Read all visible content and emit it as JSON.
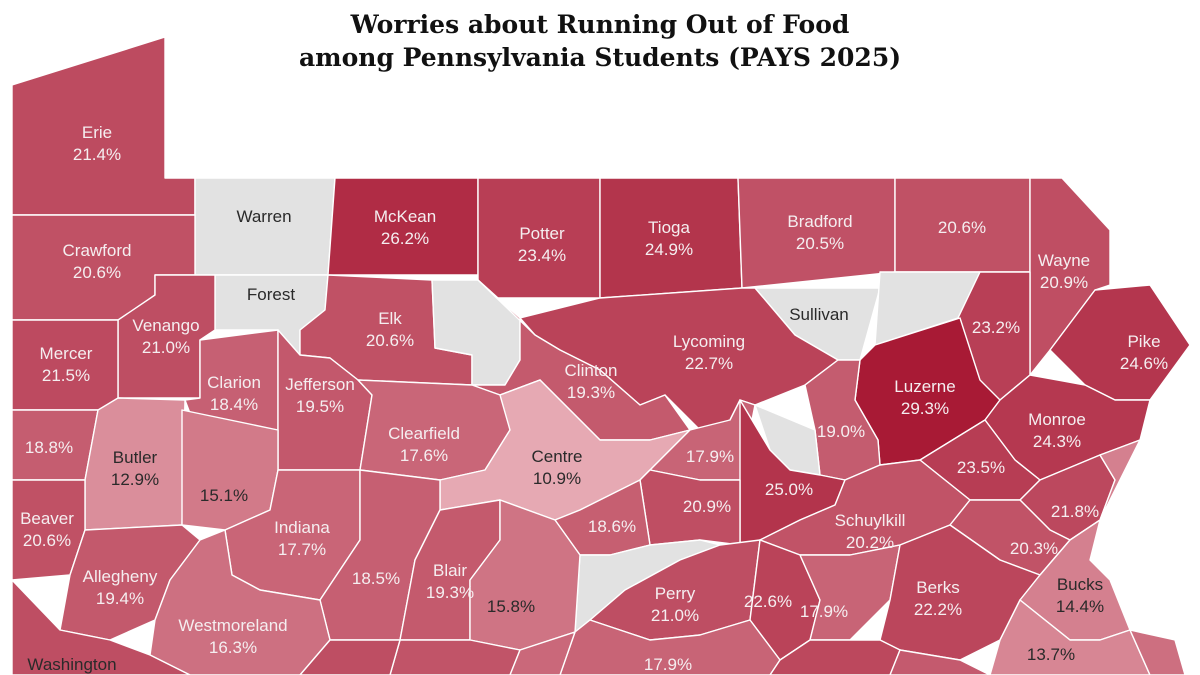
{
  "title": {
    "line1": "Worries about Running Out of Food",
    "line2": "among Pennsylvania Students (PAYS 2025)"
  },
  "colors": {
    "no_data": "#e2e2e2",
    "border": "#ffffff",
    "scale_low": "#e6a9b3",
    "scale_high": "#a81a35"
  },
  "counties": [
    {
      "key": "erie",
      "name": "Erie",
      "value": "21.4%"
    },
    {
      "key": "warren",
      "name": "Warren",
      "value": ""
    },
    {
      "key": "mckean",
      "name": "McKean",
      "value": "26.2%"
    },
    {
      "key": "potter",
      "name": "Potter",
      "value": "23.4%"
    },
    {
      "key": "tioga",
      "name": "Tioga",
      "value": "24.9%"
    },
    {
      "key": "bradford",
      "name": "Bradford",
      "value": "20.5%"
    },
    {
      "key": "susquehanna",
      "name": "",
      "value": "20.6%"
    },
    {
      "key": "wayne",
      "name": "Wayne",
      "value": "20.9%"
    },
    {
      "key": "crawford",
      "name": "Crawford",
      "value": "20.6%"
    },
    {
      "key": "forest",
      "name": "Forest",
      "value": ""
    },
    {
      "key": "elk",
      "name": "Elk",
      "value": "20.6%"
    },
    {
      "key": "cameron",
      "name": "",
      "value": ""
    },
    {
      "key": "sullivan",
      "name": "Sullivan",
      "value": ""
    },
    {
      "key": "wyoming",
      "name": "",
      "value": ""
    },
    {
      "key": "lackawanna",
      "name": "",
      "value": "23.2%"
    },
    {
      "key": "pike",
      "name": "Pike",
      "value": "24.6%"
    },
    {
      "key": "venango",
      "name": "Venango",
      "value": "21.0%"
    },
    {
      "key": "mercer",
      "name": "Mercer",
      "value": "21.5%"
    },
    {
      "key": "lycoming",
      "name": "Lycoming",
      "value": "22.7%"
    },
    {
      "key": "clinton",
      "name": "Clinton",
      "value": "19.3%"
    },
    {
      "key": "luzerne",
      "name": "Luzerne",
      "value": "29.3%"
    },
    {
      "key": "clarion",
      "name": "Clarion",
      "value": "18.4%"
    },
    {
      "key": "jefferson",
      "name": "Jefferson",
      "value": "19.5%"
    },
    {
      "key": "clearfield",
      "name": "Clearfield",
      "value": "17.6%"
    },
    {
      "key": "centre",
      "name": "Centre",
      "value": "10.9%"
    },
    {
      "key": "columbia",
      "name": "",
      "value": "19.0%"
    },
    {
      "key": "monroe",
      "name": "Monroe",
      "value": "24.3%"
    },
    {
      "key": "lawrence",
      "name": "",
      "value": "18.8%"
    },
    {
      "key": "butler",
      "name": "Butler",
      "value": "12.9%"
    },
    {
      "key": "armstrong",
      "name": "",
      "value": "15.1%"
    },
    {
      "key": "union",
      "name": "",
      "value": "17.9%"
    },
    {
      "key": "montour",
      "name": "",
      "value": ""
    },
    {
      "key": "northumberland",
      "name": "",
      "value": "25.0%"
    },
    {
      "key": "carbon",
      "name": "",
      "value": "23.5%"
    },
    {
      "key": "beaver",
      "name": "Beaver",
      "value": "20.6%"
    },
    {
      "key": "indiana",
      "name": "Indiana",
      "value": "17.7%"
    },
    {
      "key": "snyder",
      "name": "",
      "value": "20.9%"
    },
    {
      "key": "mifflin",
      "name": "",
      "value": "18.6%"
    },
    {
      "key": "juniata",
      "name": "",
      "value": ""
    },
    {
      "key": "schuylkill",
      "name": "Schuylkill",
      "value": "20.2%"
    },
    {
      "key": "northampton",
      "name": "",
      "value": "21.8%"
    },
    {
      "key": "lehigh",
      "name": "",
      "value": "20.3%"
    },
    {
      "key": "allegheny",
      "name": "Allegheny",
      "value": "19.4%"
    },
    {
      "key": "cambria",
      "name": "",
      "value": "18.5%"
    },
    {
      "key": "blair",
      "name": "Blair",
      "value": "19.3%"
    },
    {
      "key": "huntingdon",
      "name": "",
      "value": "15.8%"
    },
    {
      "key": "perry",
      "name": "Perry",
      "value": "21.0%"
    },
    {
      "key": "dauphin",
      "name": "",
      "value": "22.6%"
    },
    {
      "key": "lebanon",
      "name": "",
      "value": "17.9%"
    },
    {
      "key": "berks",
      "name": "Berks",
      "value": "22.2%"
    },
    {
      "key": "bucks",
      "name": "Bucks",
      "value": "14.4%"
    },
    {
      "key": "westmoreland",
      "name": "Westmoreland",
      "value": "16.3%"
    },
    {
      "key": "cumberland",
      "name": "",
      "value": "17.9%"
    },
    {
      "key": "montgomery",
      "name": "",
      "value": "13.7%"
    },
    {
      "key": "washington",
      "name": "Washington",
      "value": ""
    },
    {
      "key": "bedford",
      "name": "",
      "value": ""
    },
    {
      "key": "fulton",
      "name": "",
      "value": ""
    },
    {
      "key": "franklin",
      "name": "",
      "value": ""
    },
    {
      "key": "adams",
      "name": "",
      "value": ""
    },
    {
      "key": "york",
      "name": "",
      "value": ""
    },
    {
      "key": "lancaster",
      "name": "",
      "value": ""
    },
    {
      "key": "chester",
      "name": "",
      "value": ""
    },
    {
      "key": "delaware",
      "name": "",
      "value": ""
    },
    {
      "key": "somerset",
      "name": "",
      "value": ""
    },
    {
      "key": "greene",
      "name": "",
      "value": ""
    },
    {
      "key": "fayette",
      "name": "",
      "value": ""
    }
  ]
}
